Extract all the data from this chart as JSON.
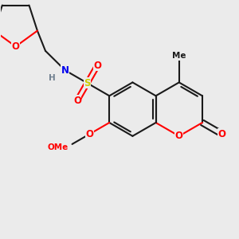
{
  "background_color": "#ebebeb",
  "bond_color": "#1a1a1a",
  "atom_colors": {
    "O": "#ff0000",
    "N": "#0000ee",
    "S": "#cccc00",
    "H": "#708090",
    "C": "#1a1a1a"
  },
  "bond_lw": 1.5,
  "figsize": [
    3.0,
    3.0
  ],
  "dpi": 100
}
